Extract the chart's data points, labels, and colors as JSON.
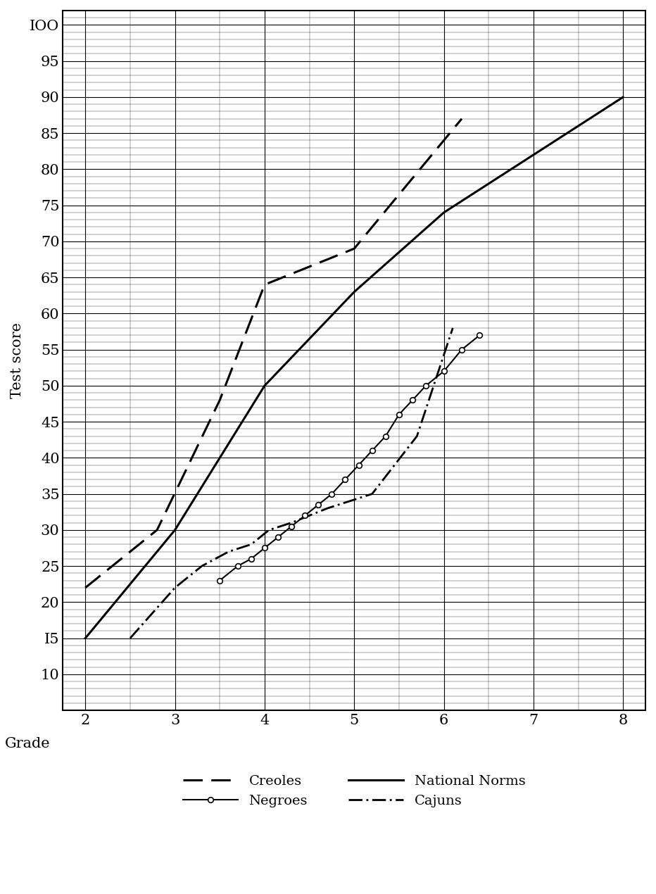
{
  "xlabel": "Grade",
  "ylabel": "Test score",
  "xlim": [
    1.75,
    8.25
  ],
  "ylim": [
    5,
    102
  ],
  "xticks": [
    2,
    3,
    4,
    5,
    6,
    7,
    8
  ],
  "yticks_major": [
    10,
    15,
    20,
    25,
    30,
    35,
    40,
    45,
    50,
    55,
    60,
    65,
    70,
    75,
    80,
    85,
    90,
    95,
    100
  ],
  "ytick_labels": [
    "10",
    "I5",
    "20",
    "25",
    "30",
    "35",
    "40",
    "45",
    "50",
    "55",
    "60",
    "65",
    "70",
    "75",
    "80",
    "85",
    "90",
    "95",
    "IOO"
  ],
  "national_norms": {
    "x": [
      2,
      3,
      4,
      5,
      6,
      7,
      8
    ],
    "y": [
      15,
      30,
      50,
      63,
      74,
      82,
      90
    ],
    "label": "National Norms"
  },
  "creoles": {
    "x": [
      2,
      2.8,
      3.5,
      4.0,
      5.0,
      6.2
    ],
    "y": [
      22,
      30,
      48,
      64,
      69,
      87
    ],
    "label": "Creoles"
  },
  "negroes": {
    "x": [
      3.5,
      3.7,
      3.85,
      4.0,
      4.15,
      4.3,
      4.45,
      4.6,
      4.75,
      4.9,
      5.05,
      5.2,
      5.35,
      5.5,
      5.65,
      5.8,
      6.0,
      6.2,
      6.4
    ],
    "y": [
      23,
      25,
      26,
      27.5,
      29,
      30.5,
      32,
      33.5,
      35,
      37,
      39,
      41,
      43,
      46,
      48,
      50,
      52,
      55,
      57
    ],
    "label": "Negroes"
  },
  "cajuns": {
    "x": [
      2.5,
      3.0,
      3.3,
      3.6,
      3.85,
      4.05,
      4.3,
      4.7,
      5.2,
      5.7,
      6.1
    ],
    "y": [
      15,
      22,
      25,
      27,
      28,
      30,
      31,
      33,
      35,
      43,
      58
    ],
    "label": "Cajuns"
  },
  "background_color": "#ffffff"
}
